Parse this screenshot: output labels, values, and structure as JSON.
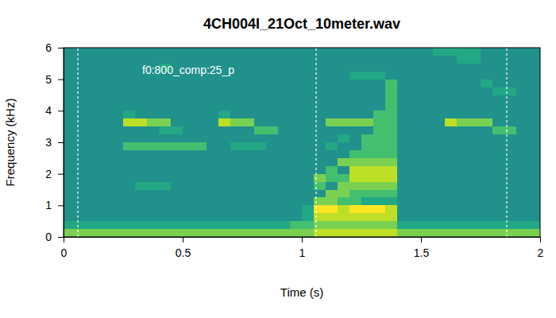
{
  "chart_data": {
    "type": "heatmap",
    "title": "4CH004I_21Oct_10meter.wav",
    "x_label": "Time (s)",
    "y_label": "Frequency (kHz)",
    "xlim": [
      0,
      2
    ],
    "ylim": [
      0,
      6
    ],
    "xticks": [
      0,
      0.5,
      1,
      1.5,
      2
    ],
    "yticks": [
      0,
      1,
      2,
      3,
      4,
      5,
      6
    ],
    "zlim": [
      0,
      10
    ],
    "x_bins": [
      0,
      0.05,
      0.1,
      0.15,
      0.2,
      0.25,
      0.3,
      0.35,
      0.4,
      0.45,
      0.5,
      0.55,
      0.6,
      0.65,
      0.7,
      0.75,
      0.8,
      0.85,
      0.9,
      0.95,
      1,
      1.05,
      1.1,
      1.15,
      1.2,
      1.25,
      1.3,
      1.35,
      1.4,
      1.45,
      1.5,
      1.55,
      1.6,
      1.65,
      1.7,
      1.75,
      1.8,
      1.85,
      1.9,
      1.95,
      2
    ],
    "y_bins": [
      0,
      0.25,
      0.5,
      0.75,
      1,
      1.25,
      1.5,
      1.75,
      2,
      2.25,
      2.5,
      2.75,
      3,
      3.25,
      3.5,
      3.75,
      4,
      4.25,
      4.5,
      4.75,
      5,
      5.25,
      5.5,
      5.75,
      6
    ],
    "cells": [
      [
        8,
        8,
        8,
        8,
        8,
        8,
        8,
        8,
        8,
        8,
        8,
        8,
        8,
        8,
        8,
        8,
        8,
        8,
        8,
        8,
        8,
        9,
        9,
        9,
        9,
        9,
        9,
        9,
        8,
        8,
        8,
        8,
        8,
        8,
        8,
        8,
        8,
        8,
        8,
        8
      ],
      [
        6,
        6,
        6,
        6,
        6,
        6,
        6,
        6,
        6,
        6,
        6,
        6,
        6,
        6,
        6,
        6,
        6,
        6,
        6,
        7,
        7,
        8,
        8,
        8,
        8,
        8,
        8,
        8,
        6,
        6,
        6,
        6,
        6,
        6,
        6,
        6,
        6,
        6,
        6,
        6
      ],
      [
        5,
        5,
        5,
        5,
        5,
        5,
        5,
        5,
        5,
        5,
        5,
        5,
        5,
        5,
        5,
        5,
        5,
        5,
        5,
        5,
        6,
        9,
        9,
        9,
        9,
        9,
        9,
        9,
        5,
        5,
        5,
        5,
        5,
        5,
        5,
        5,
        5,
        5,
        5,
        5
      ],
      [
        5,
        5,
        5,
        5,
        5,
        5,
        5,
        5,
        5,
        5,
        5,
        5,
        5,
        5,
        5,
        5,
        5,
        5,
        5,
        5,
        6,
        10,
        10,
        9,
        10,
        10,
        10,
        9,
        5,
        5,
        5,
        5,
        5,
        5,
        5,
        5,
        5,
        5,
        5,
        5
      ],
      [
        5,
        5,
        5,
        5,
        5,
        5,
        5,
        5,
        5,
        5,
        5,
        5,
        5,
        5,
        5,
        5,
        5,
        5,
        5,
        5,
        5,
        8,
        8,
        7,
        7,
        6,
        6,
        6,
        5,
        5,
        5,
        5,
        5,
        5,
        5,
        5,
        5,
        5,
        5,
        5
      ],
      [
        5,
        5,
        5,
        5,
        5,
        5,
        5,
        5,
        5,
        5,
        5,
        5,
        5,
        5,
        5,
        5,
        5,
        5,
        5,
        5,
        5,
        5,
        8,
        8,
        7,
        7,
        7,
        7,
        5,
        5,
        5,
        5,
        5,
        5,
        5,
        5,
        5,
        5,
        5,
        5
      ],
      [
        5,
        5,
        5,
        5,
        5,
        5,
        6,
        6,
        6,
        5,
        5,
        5,
        5,
        5,
        5,
        5,
        5,
        5,
        5,
        5,
        5,
        7,
        5,
        8,
        8,
        8,
        8,
        8,
        5,
        5,
        5,
        5,
        5,
        5,
        5,
        5,
        5,
        5,
        5,
        5
      ],
      [
        5,
        5,
        5,
        5,
        5,
        5,
        5,
        5,
        5,
        5,
        5,
        5,
        5,
        5,
        5,
        5,
        5,
        5,
        5,
        5,
        5,
        8,
        7,
        7,
        9,
        9,
        9,
        9,
        5,
        5,
        5,
        5,
        5,
        5,
        5,
        5,
        5,
        5,
        5,
        5
      ],
      [
        5,
        5,
        5,
        5,
        5,
        5,
        5,
        5,
        5,
        5,
        5,
        5,
        5,
        5,
        5,
        5,
        5,
        5,
        5,
        5,
        5,
        5,
        7,
        5,
        9,
        9,
        9,
        9,
        5,
        5,
        5,
        5,
        5,
        5,
        5,
        5,
        5,
        5,
        5,
        5
      ],
      [
        5,
        5,
        5,
        5,
        5,
        5,
        5,
        5,
        5,
        5,
        5,
        5,
        5,
        5,
        5,
        5,
        5,
        5,
        5,
        5,
        5,
        5,
        5,
        8,
        8,
        8,
        8,
        8,
        5,
        5,
        5,
        5,
        5,
        5,
        5,
        5,
        5,
        5,
        5,
        5
      ],
      [
        5,
        5,
        5,
        5,
        5,
        5,
        5,
        5,
        5,
        5,
        5,
        5,
        5,
        5,
        5,
        5,
        5,
        5,
        5,
        5,
        5,
        5,
        5,
        5,
        7,
        7,
        7,
        7,
        5,
        5,
        5,
        5,
        5,
        5,
        5,
        5,
        5,
        5,
        5,
        5
      ],
      [
        5,
        5,
        5,
        5,
        5,
        7,
        7,
        7,
        7,
        7,
        7,
        7,
        5,
        5,
        6,
        6,
        6,
        5,
        5,
        5,
        5,
        5,
        6,
        5,
        5,
        7,
        7,
        7,
        5,
        5,
        5,
        5,
        5,
        5,
        5,
        5,
        5,
        5,
        5,
        5
      ],
      [
        5,
        5,
        5,
        5,
        5,
        5,
        5,
        5,
        5,
        5,
        5,
        5,
        5,
        5,
        5,
        5,
        5,
        5,
        5,
        5,
        5,
        5,
        5,
        6,
        5,
        7,
        7,
        7,
        5,
        5,
        5,
        5,
        5,
        5,
        5,
        5,
        5,
        5,
        5,
        5
      ],
      [
        5,
        5,
        5,
        5,
        5,
        5,
        5,
        5,
        6,
        6,
        5,
        5,
        5,
        5,
        5,
        5,
        7,
        7,
        5,
        5,
        5,
        5,
        5,
        5,
        5,
        5,
        7,
        7,
        5,
        5,
        5,
        5,
        5,
        5,
        5,
        5,
        7,
        7,
        5,
        5
      ],
      [
        5,
        5,
        5,
        5,
        5,
        9,
        9,
        8,
        8,
        5,
        5,
        5,
        5,
        9,
        8,
        8,
        5,
        5,
        5,
        5,
        5,
        5,
        8,
        8,
        8,
        8,
        7,
        7,
        5,
        5,
        5,
        5,
        9,
        8,
        8,
        8,
        5,
        5,
        5,
        5
      ],
      [
        5,
        5,
        5,
        5,
        5,
        6,
        5,
        5,
        5,
        5,
        5,
        5,
        5,
        6,
        5,
        5,
        5,
        5,
        5,
        5,
        5,
        5,
        5,
        5,
        5,
        5,
        7,
        7,
        5,
        5,
        5,
        5,
        5,
        5,
        5,
        5,
        5,
        5,
        5,
        5
      ],
      [
        5,
        5,
        5,
        5,
        5,
        5,
        5,
        5,
        5,
        5,
        5,
        5,
        5,
        5,
        5,
        5,
        5,
        5,
        5,
        5,
        5,
        5,
        5,
        5,
        5,
        5,
        5,
        7,
        5,
        5,
        5,
        5,
        5,
        5,
        5,
        5,
        5,
        5,
        5,
        5
      ],
      [
        5,
        5,
        5,
        5,
        5,
        5,
        5,
        5,
        5,
        5,
        5,
        5,
        5,
        5,
        5,
        5,
        5,
        5,
        5,
        5,
        5,
        5,
        5,
        5,
        5,
        5,
        5,
        7,
        5,
        5,
        5,
        5,
        5,
        5,
        5,
        5,
        5,
        5,
        5,
        5
      ],
      [
        5,
        5,
        5,
        5,
        5,
        5,
        5,
        5,
        5,
        5,
        5,
        5,
        5,
        5,
        5,
        5,
        5,
        5,
        5,
        5,
        5,
        5,
        5,
        5,
        5,
        5,
        5,
        7,
        5,
        5,
        5,
        5,
        5,
        5,
        5,
        5,
        6,
        6,
        5,
        5
      ],
      [
        5,
        5,
        5,
        5,
        5,
        5,
        5,
        5,
        5,
        5,
        5,
        5,
        5,
        5,
        5,
        5,
        5,
        5,
        5,
        5,
        5,
        5,
        5,
        5,
        5,
        5,
        5,
        7,
        5,
        5,
        5,
        5,
        5,
        5,
        5,
        6,
        5,
        5,
        5,
        5
      ],
      [
        5,
        5,
        5,
        5,
        5,
        5,
        5,
        5,
        5,
        5,
        5,
        5,
        5,
        5,
        5,
        5,
        5,
        5,
        5,
        5,
        5,
        5,
        5,
        5,
        6,
        6,
        6,
        5,
        5,
        5,
        5,
        5,
        5,
        5,
        5,
        5,
        5,
        5,
        5,
        5
      ],
      [
        5,
        5,
        5,
        5,
        5,
        5,
        5,
        5,
        6,
        5,
        5,
        5,
        5,
        5,
        5,
        5,
        5,
        5,
        5,
        5,
        5,
        5,
        5,
        5,
        5,
        5,
        5,
        5,
        5,
        5,
        5,
        5,
        5,
        5,
        5,
        5,
        5,
        5,
        5,
        5
      ],
      [
        5,
        5,
        5,
        5,
        5,
        5,
        5,
        5,
        5,
        5,
        5,
        5,
        5,
        5,
        5,
        5,
        5,
        5,
        5,
        5,
        5,
        5,
        5,
        5,
        5,
        5,
        5,
        5,
        5,
        5,
        5,
        5,
        5,
        6,
        6,
        5,
        5,
        5,
        5,
        5
      ],
      [
        5,
        5,
        5,
        5,
        5,
        5,
        5,
        5,
        5,
        5,
        5,
        5,
        5,
        5,
        5,
        5,
        5,
        5,
        5,
        5,
        5,
        5,
        5,
        5,
        5,
        5,
        5,
        5,
        5,
        5,
        5,
        6,
        6,
        6,
        6,
        5,
        5,
        5,
        5,
        5
      ]
    ],
    "vlines": [
      0.06,
      1.06,
      1.86
    ],
    "annotations": [
      {
        "text": "f0:800_comp:25_p",
        "x": 0.33,
        "y": 5.3
      }
    ]
  }
}
